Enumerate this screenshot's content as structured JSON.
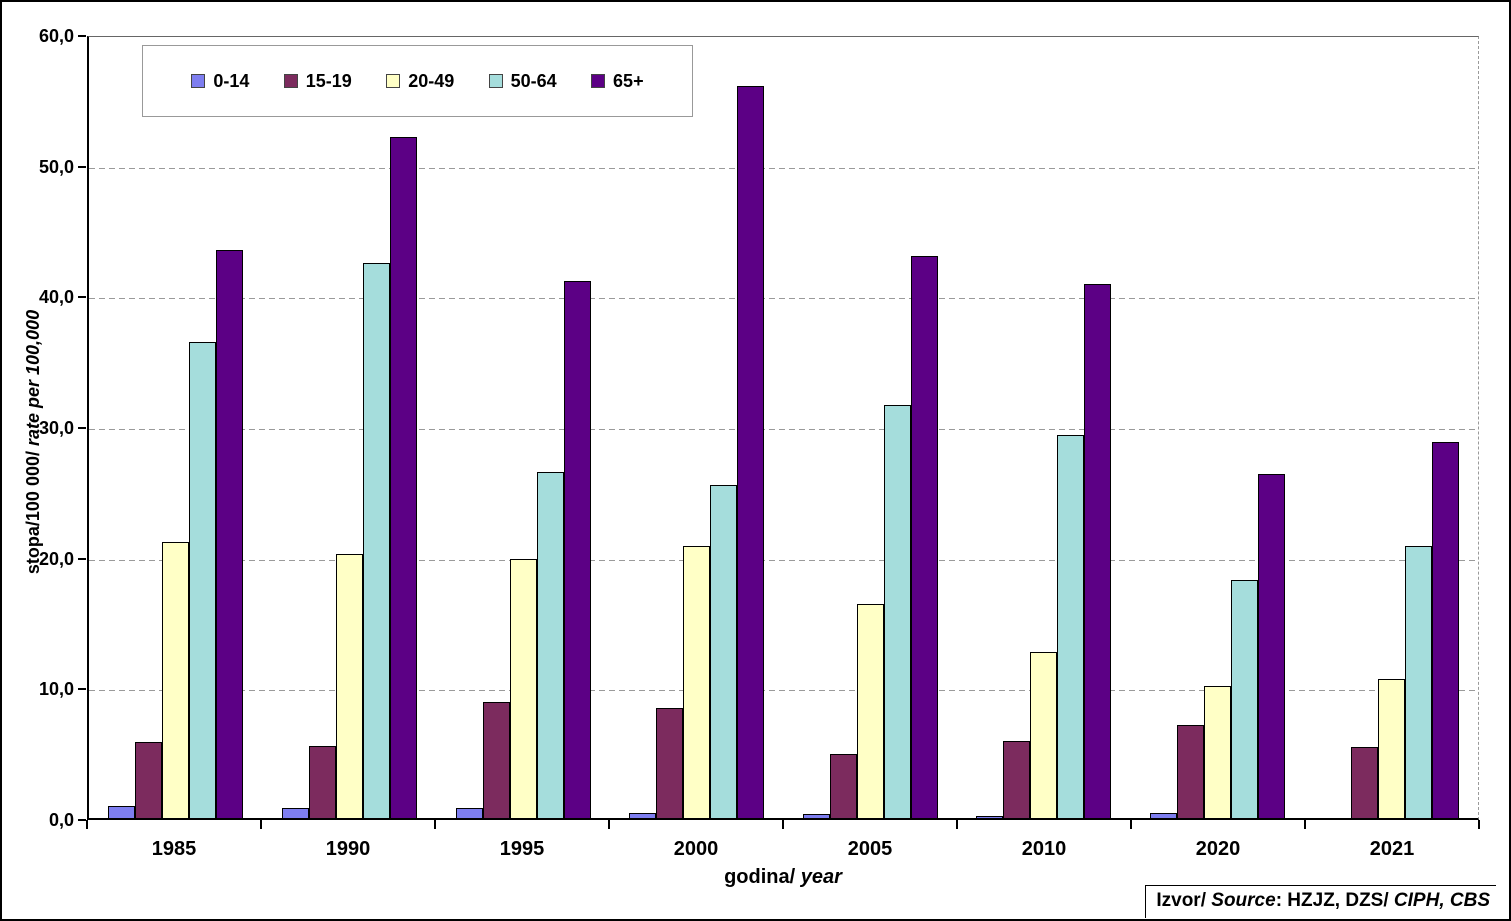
{
  "chart_data": {
    "type": "bar",
    "title": "",
    "xlabel": "godina/ year",
    "ylabel": "stopa/100 000/ rate per 100,000",
    "source": "Izvor/ Source: HZJZ, DZS/ CIPH, CBS",
    "ylim": [
      0,
      60
    ],
    "ytick_step": 10,
    "ytick_labels_top_to_bottom": [
      "60,0",
      "50,0",
      "40,0",
      "30,0",
      "20,0",
      "10,0",
      "0,0"
    ],
    "grid": "horizontal-dashed",
    "legend_position": "top-left-inside",
    "categories": [
      "1985",
      "1990",
      "1995",
      "2000",
      "2005",
      "2010",
      "2020",
      "2021"
    ],
    "series": [
      {
        "name": "0-14",
        "color": "#7E7EF0",
        "values": [
          0.9,
          0.8,
          0.8,
          0.4,
          0.3,
          0.1,
          0.4,
          0.0
        ]
      },
      {
        "name": "15-19",
        "color": "#7C2B5E",
        "values": [
          5.8,
          5.5,
          8.9,
          8.4,
          4.9,
          5.9,
          7.1,
          5.4
        ]
      },
      {
        "name": "20-49",
        "color": "#FFFFC6",
        "values": [
          21.1,
          20.2,
          19.8,
          20.8,
          16.4,
          12.7,
          10.1,
          10.6
        ]
      },
      {
        "name": "50-64",
        "color": "#A5DDDC",
        "values": [
          36.4,
          42.5,
          26.5,
          25.5,
          31.6,
          29.3,
          18.2,
          20.8
        ]
      },
      {
        "name": "65+",
        "color": "#5C0085",
        "values": [
          43.5,
          52.1,
          41.1,
          56.0,
          43.0,
          40.9,
          26.3,
          28.8
        ]
      }
    ],
    "labels": {
      "ylabel_normal": "stopa/100 000/ ",
      "ylabel_italic": "rate per 100,000",
      "xlabel_normal": "godina/ ",
      "xlabel_italic": "year",
      "source_prefix": "Izvor/ ",
      "source_word_italic": "Source",
      "source_mid": ": HZJZ, DZS/ ",
      "source_end_italic": "CIPH, CBS"
    }
  }
}
